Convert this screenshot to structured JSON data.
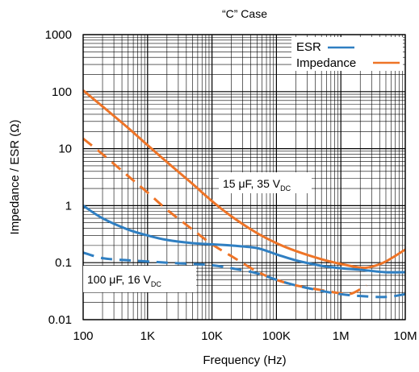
{
  "chart_data": {
    "type": "line",
    "title": "“C” Case",
    "xlabel": "Frequency (Hz)",
    "ylabel": "Impedance / ESR (Ω)",
    "xscale": "log",
    "yscale": "log",
    "xlim": [
      100,
      10000000
    ],
    "ylim": [
      0.01,
      1000
    ],
    "grid": true,
    "legend_position": "top-right",
    "x_ticks": [
      {
        "value": 100,
        "label": "100"
      },
      {
        "value": 1000,
        "label": "1K"
      },
      {
        "value": 10000,
        "label": "10K"
      },
      {
        "value": 100000,
        "label": "100K"
      },
      {
        "value": 1000000,
        "label": "1M"
      },
      {
        "value": 10000000,
        "label": "10M"
      }
    ],
    "y_ticks": [
      {
        "value": 0.01,
        "label": "0.01"
      },
      {
        "value": 0.1,
        "label": "0.1"
      },
      {
        "value": 1,
        "label": "1"
      },
      {
        "value": 10,
        "label": "10"
      },
      {
        "value": 100,
        "label": "100"
      },
      {
        "value": 1000,
        "label": "1000"
      }
    ],
    "legend": [
      {
        "label": "ESR",
        "color": "#2f7fc2"
      },
      {
        "label": "Impedance",
        "color": "#ee7427"
      }
    ],
    "annotations": {
      "a15": {
        "main": "15 μF, 35 V",
        "sub": "DC"
      },
      "a100": {
        "main": "100 μF, 16 V",
        "sub": "DC"
      }
    },
    "series": [
      {
        "legend_item": "Impedance",
        "part": "15 μF, 35 V",
        "color": "#ee7427",
        "dash": "solid",
        "x": [
          100,
          200,
          500,
          1000,
          2000,
          5000,
          10000,
          20000,
          50000,
          100000,
          200000,
          500000,
          1000000,
          2000000,
          3000000,
          5000000,
          10000000
        ],
        "y": [
          105,
          55,
          23,
          11.5,
          5.8,
          2.4,
          1.2,
          0.65,
          0.33,
          0.22,
          0.16,
          0.115,
          0.095,
          0.082,
          0.085,
          0.105,
          0.17
        ]
      },
      {
        "legend_item": "Impedance",
        "part": "100 μF, 16 V",
        "color": "#ee7427",
        "dash": "dashed",
        "x": [
          100,
          200,
          500,
          1000,
          2000,
          5000,
          10000,
          20000,
          50000,
          100000,
          200000,
          500000,
          1000000,
          1500000,
          2500000
        ],
        "y": [
          15,
          8,
          3.3,
          1.7,
          0.85,
          0.38,
          0.21,
          0.13,
          0.07,
          0.05,
          0.04,
          0.033,
          0.029,
          0.029,
          0.04
        ]
      },
      {
        "legend_item": "ESR",
        "part": "15 μF, 35 V",
        "color": "#2f7fc2",
        "dash": "solid",
        "x": [
          100,
          200,
          500,
          1000,
          2000,
          5000,
          10000,
          20000,
          50000,
          100000,
          200000,
          500000,
          1000000,
          2000000,
          5000000,
          10000000
        ],
        "y": [
          1.0,
          0.6,
          0.38,
          0.3,
          0.25,
          0.22,
          0.21,
          0.2,
          0.18,
          0.14,
          0.11,
          0.088,
          0.08,
          0.075,
          0.068,
          0.068
        ]
      },
      {
        "legend_item": "ESR",
        "part": "100 μF, 16 V",
        "color": "#2f7fc2",
        "dash": "dashed",
        "x": [
          100,
          200,
          500,
          1000,
          2000,
          5000,
          10000,
          20000,
          50000,
          100000,
          200000,
          500000,
          1000000,
          2000000,
          5000000,
          10000000
        ],
        "y": [
          0.15,
          0.12,
          0.11,
          0.105,
          0.1,
          0.095,
          0.09,
          0.08,
          0.065,
          0.05,
          0.04,
          0.032,
          0.028,
          0.026,
          0.025,
          0.028
        ]
      }
    ]
  }
}
